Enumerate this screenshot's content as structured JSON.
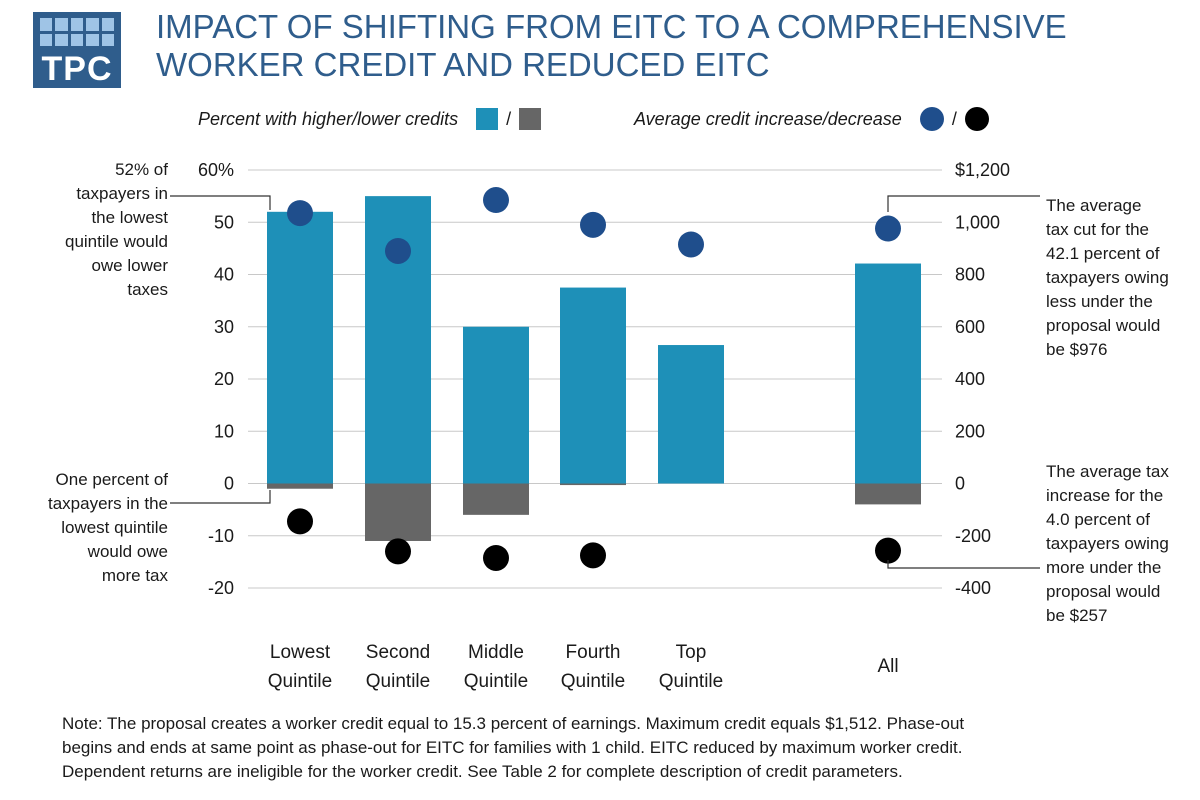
{
  "logo": {
    "text": "TPC"
  },
  "title": {
    "line1": "Impact of shifting from EITC to a comprehensive",
    "line2": "worker credit and reduced EITC"
  },
  "legend": {
    "bars_label": "Percent with higher/lower credits",
    "dots_label": "Average credit increase/decrease",
    "slash": "/"
  },
  "colors": {
    "higher": "#1e90b8",
    "lower": "#666666",
    "increase": "#1f4e8c",
    "decrease": "#000000",
    "title": "#2f5d8c"
  },
  "chart_data": {
    "type": "bar",
    "categories": [
      [
        "Lowest",
        "Quintile"
      ],
      [
        "Second",
        "Quintile"
      ],
      [
        "Middle",
        "Quintile"
      ],
      [
        "Fourth",
        "Quintile"
      ],
      [
        "Top",
        "Quintile"
      ],
      [
        "All"
      ]
    ],
    "series": [
      {
        "values": [
          52,
          55,
          30,
          37.5,
          26.5,
          42.1
        ],
        "axis": "left",
        "mark": "bar"
      },
      {
        "values": [
          -1,
          -11,
          -6,
          -0.3,
          0,
          -4.0
        ],
        "axis": "left",
        "mark": "bar"
      },
      {
        "values": [
          1035,
          890,
          1085,
          990,
          915,
          976
        ],
        "axis": "right",
        "mark": "dot"
      },
      {
        "values": [
          -145,
          -260,
          -285,
          -275,
          null,
          -257
        ],
        "axis": "right",
        "mark": "dot"
      }
    ],
    "left_axis": {
      "ylim": [
        -20,
        60
      ],
      "ticks": [
        "60%",
        "50",
        "40",
        "30",
        "20",
        "10",
        "0",
        "-10",
        "-20"
      ]
    },
    "right_axis": {
      "ylim": [
        -400,
        1200
      ],
      "ticks": [
        "$1,200",
        "1,000",
        "800",
        "600",
        "400",
        "200",
        "0",
        "-200",
        "-400"
      ]
    },
    "grid": true,
    "annotations": [
      {
        "lines": [
          "52% of",
          "taxpayers in",
          "the lowest",
          "quintile would",
          "owe lower",
          "taxes"
        ]
      },
      {
        "lines": [
          "One percent of",
          "taxpayers in the",
          "lowest quintile",
          "would owe",
          "more tax"
        ]
      },
      {
        "lines": [
          "The average",
          "tax cut for the",
          "42.1 percent of",
          "taxpayers owing",
          "less under the",
          "proposal would",
          "be $976"
        ]
      },
      {
        "lines": [
          "The average tax",
          "increase for the",
          "4.0 percent of",
          "taxpayers owing",
          "more under the",
          "proposal would",
          "be $257"
        ]
      }
    ]
  },
  "note": {
    "lines": [
      "Note: The proposal creates a worker credit equal to 15.3 percent of earnings. Maximum credit equals $1,512. Phase-out",
      "begins and ends at same point as phase-out for EITC for families with 1 child. EITC reduced by maximum worker credit.",
      "Dependent returns are ineligible for the worker credit. See Table 2 for complete description of credit parameters."
    ]
  }
}
